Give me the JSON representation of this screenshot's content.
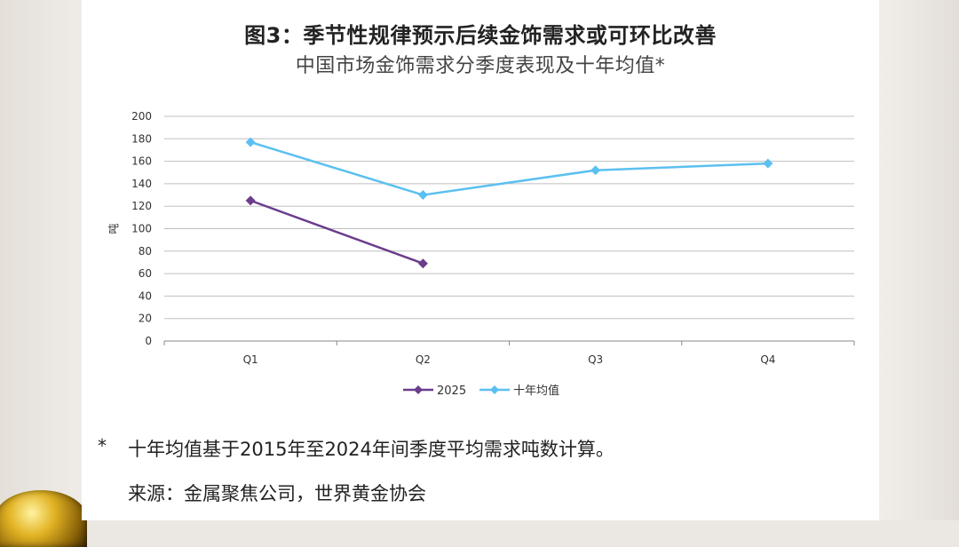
{
  "title": "图3：季节性规律预示后续金饰需求或可环比改善",
  "subtitle": "中国市场金饰需求分季度表现及十年均值*",
  "footnote_marker": "*",
  "footnote": "十年均值基于2015年至2024年间季度平均需求吨数计算。",
  "source": "来源：金属聚焦公司，世界黄金协会",
  "chart_data": {
    "type": "line",
    "title": "中国市场金饰需求分季度表现及十年均值*",
    "xlabel": "",
    "ylabel": "吨",
    "categories": [
      "Q1",
      "Q2",
      "Q3",
      "Q4"
    ],
    "ylim": [
      0,
      200
    ],
    "yticks": [
      "0",
      "20",
      "40",
      "60",
      "80",
      "100",
      "120",
      "140",
      "160",
      "180",
      "200"
    ],
    "grid": true,
    "legend_position": "bottom",
    "series": [
      {
        "name": "2025",
        "color": "#6b3d8c",
        "marker": "diamond",
        "values": [
          125,
          69,
          null,
          null
        ]
      },
      {
        "name": "十年均值",
        "color": "#5bc0f0",
        "marker": "diamond",
        "values": [
          177,
          130,
          152,
          158
        ]
      }
    ]
  }
}
